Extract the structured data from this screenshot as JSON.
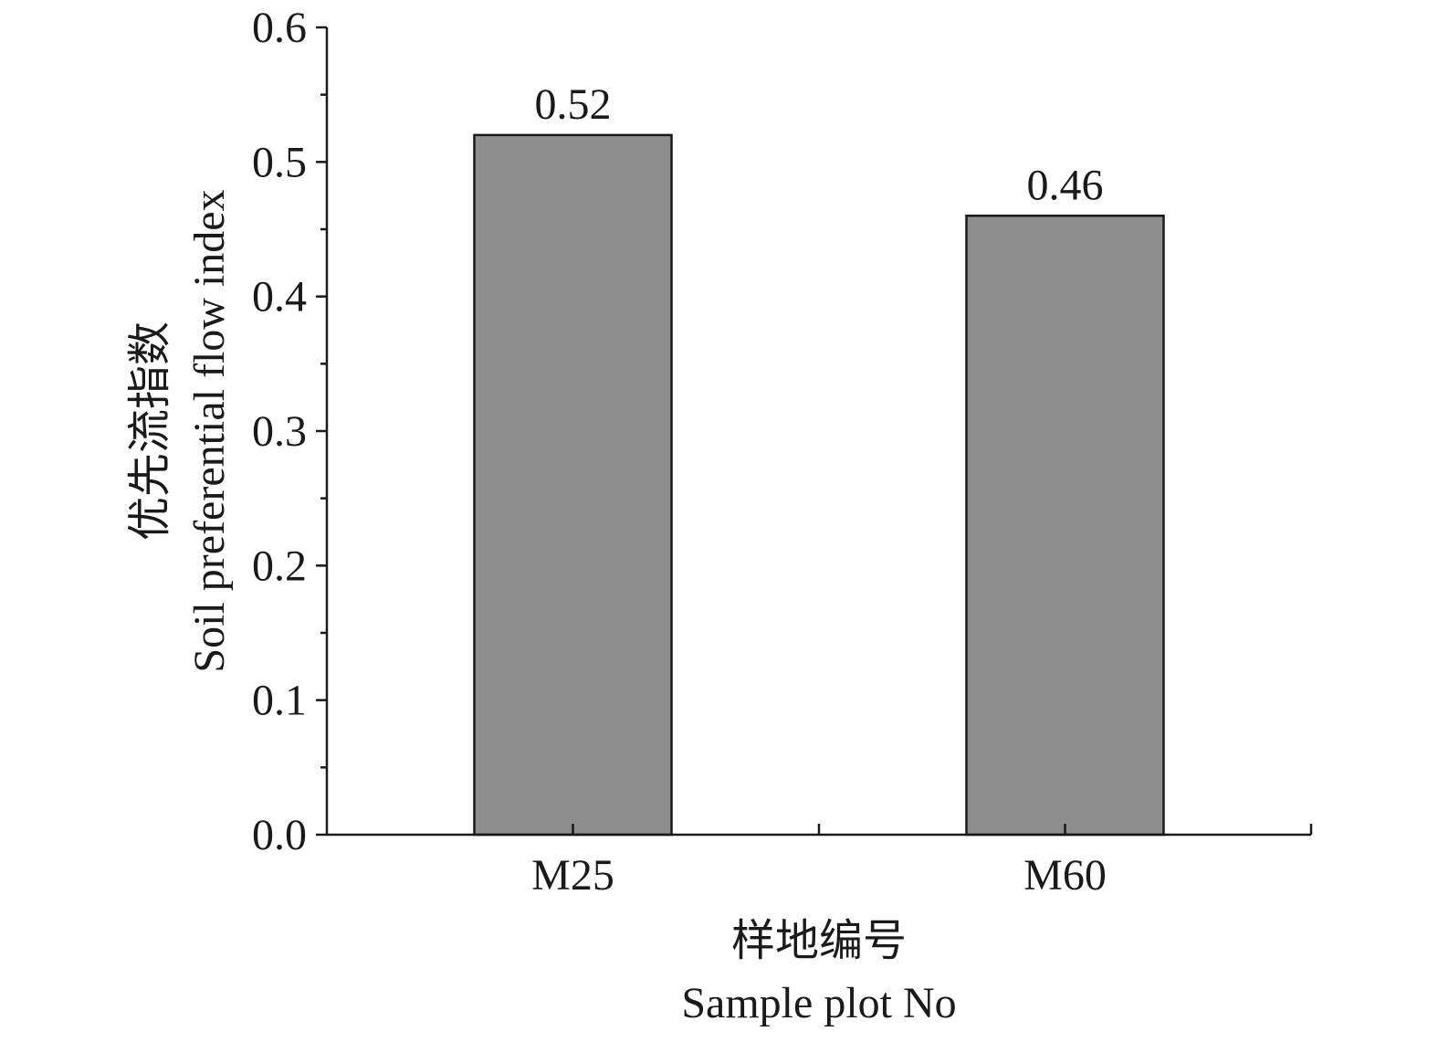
{
  "chart_data": {
    "type": "bar",
    "categories": [
      "M25",
      "M60"
    ],
    "values": [
      0.52,
      0.46
    ],
    "data_labels": [
      "0.52",
      "0.46"
    ],
    "title": "",
    "xlabel": "样地编号",
    "xlabel_en": "Sample plot No",
    "ylabel": "优先流指数",
    "ylabel_en": "Soil preferential flow index",
    "ylim": [
      0,
      0.6
    ],
    "yticks": [
      "0.0",
      "0.1",
      "0.2",
      "0.3",
      "0.4",
      "0.5",
      "0.6"
    ],
    "grid": false,
    "legend": "none",
    "bar_color": "#8f8e8f",
    "edge_color": "#1a1a1a"
  }
}
